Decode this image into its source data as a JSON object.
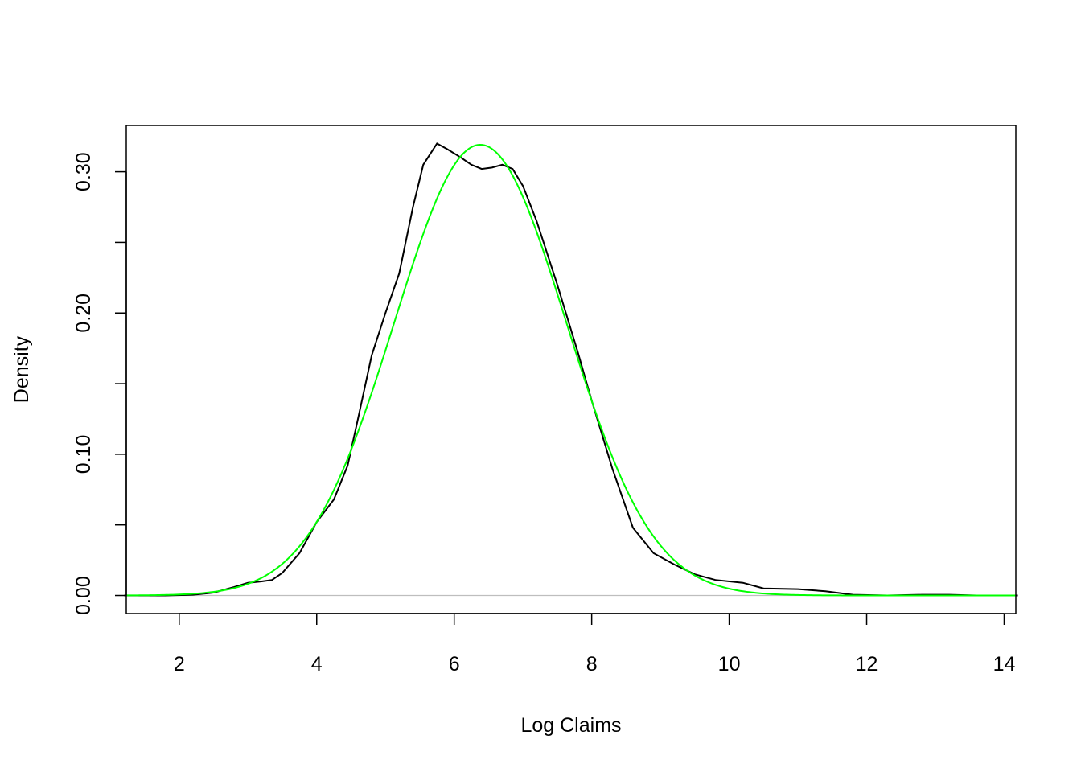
{
  "chart_data": {
    "type": "line",
    "title": "",
    "xlabel": "Log Claims",
    "ylabel": "Density",
    "xlim": [
      1.23,
      14.17
    ],
    "ylim": [
      -0.0128,
      0.3328
    ],
    "xticks": [
      2,
      4,
      6,
      8,
      10,
      12,
      14
    ],
    "xtick_labels": [
      "2",
      "4",
      "6",
      "8",
      "10",
      "12",
      "14"
    ],
    "yticks": [
      0,
      0.05,
      0.1,
      0.15,
      0.2,
      0.25,
      0.3
    ],
    "ytick_labels": [
      "0.00",
      "",
      "0.10",
      "",
      "0.20",
      "",
      "0.30"
    ],
    "grid": false,
    "baseline": 0,
    "series": [
      {
        "color": "#000000",
        "points": [
          [
            1.2,
            0.0
          ],
          [
            1.8,
            0.0
          ],
          [
            2.2,
            0.0005
          ],
          [
            2.5,
            0.002
          ],
          [
            2.8,
            0.006
          ],
          [
            3.0,
            0.009
          ],
          [
            3.2,
            0.01
          ],
          [
            3.35,
            0.011
          ],
          [
            3.5,
            0.016
          ],
          [
            3.75,
            0.03
          ],
          [
            4.0,
            0.052
          ],
          [
            4.25,
            0.068
          ],
          [
            4.45,
            0.092
          ],
          [
            4.6,
            0.125
          ],
          [
            4.8,
            0.17
          ],
          [
            5.0,
            0.2
          ],
          [
            5.2,
            0.228
          ],
          [
            5.4,
            0.275
          ],
          [
            5.55,
            0.305
          ],
          [
            5.75,
            0.32
          ],
          [
            5.9,
            0.316
          ],
          [
            6.1,
            0.31
          ],
          [
            6.25,
            0.305
          ],
          [
            6.4,
            0.302
          ],
          [
            6.55,
            0.303
          ],
          [
            6.7,
            0.305
          ],
          [
            6.85,
            0.302
          ],
          [
            7.0,
            0.29
          ],
          [
            7.2,
            0.265
          ],
          [
            7.5,
            0.22
          ],
          [
            7.8,
            0.172
          ],
          [
            8.0,
            0.138
          ],
          [
            8.3,
            0.09
          ],
          [
            8.6,
            0.048
          ],
          [
            8.9,
            0.03
          ],
          [
            9.2,
            0.022
          ],
          [
            9.5,
            0.015
          ],
          [
            9.8,
            0.011
          ],
          [
            10.2,
            0.009
          ],
          [
            10.5,
            0.005
          ],
          [
            11.0,
            0.0045
          ],
          [
            11.4,
            0.003
          ],
          [
            11.8,
            0.0005
          ],
          [
            12.3,
            0.0
          ],
          [
            12.8,
            0.0005
          ],
          [
            13.2,
            0.0005
          ],
          [
            13.6,
            0.0
          ],
          [
            14.2,
            0.0
          ]
        ]
      },
      {
        "color": "#00ff00",
        "mean": 6.38,
        "sd": 1.25
      }
    ]
  }
}
